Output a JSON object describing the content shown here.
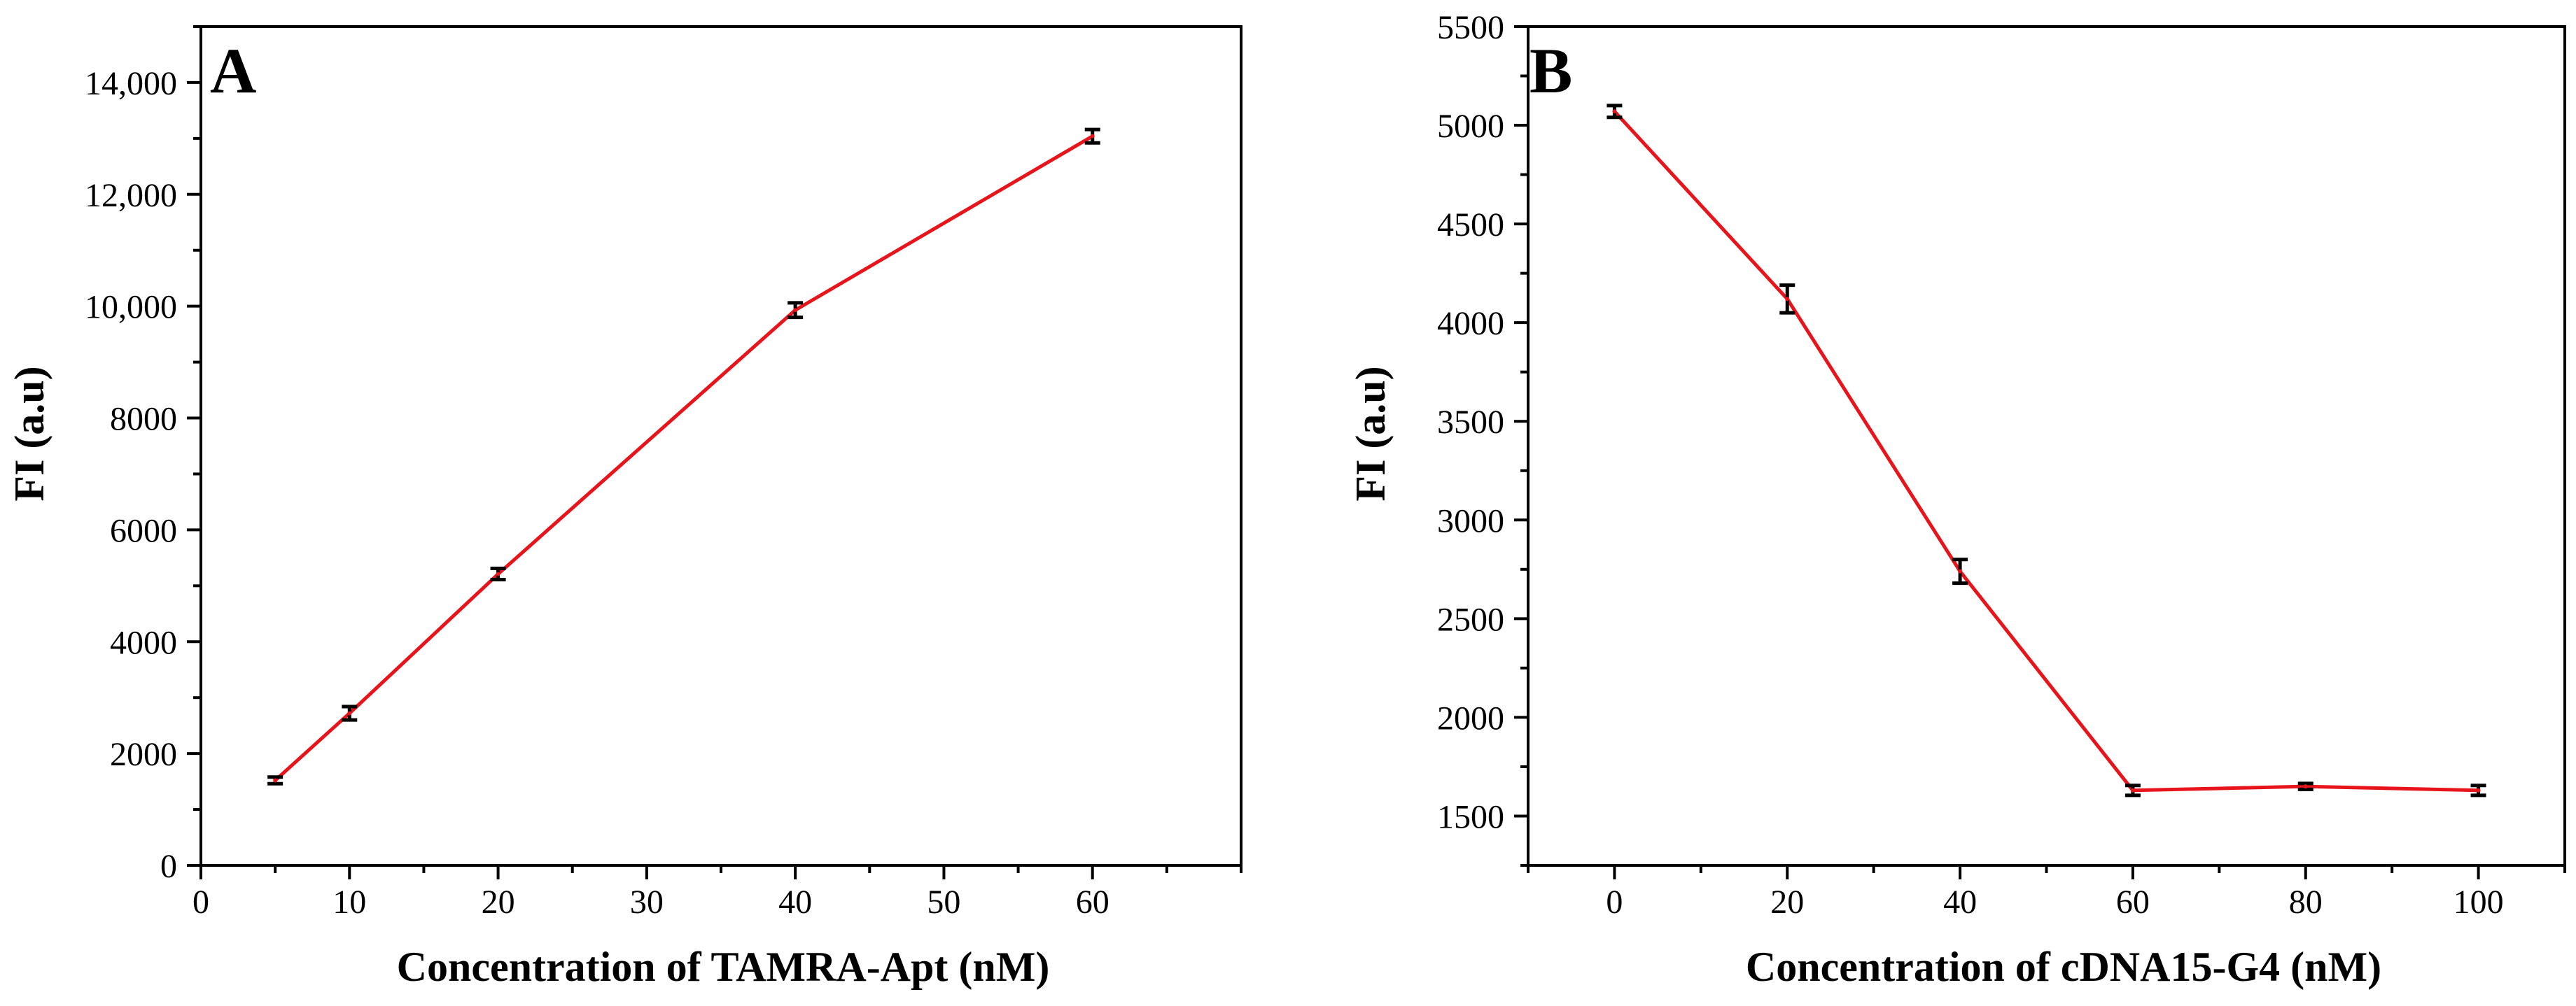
{
  "colors": {
    "line": "#e8141b",
    "axis": "#000000",
    "background": "#ffffff"
  },
  "chart_data": [
    {
      "type": "line",
      "panel_label": "A",
      "xlabel": "Concentration of TAMRA-Apt (nM)",
      "ylabel": "FI (a.u)",
      "xlim": [
        0,
        70
      ],
      "ylim": [
        0,
        15000
      ],
      "xticks": [
        0,
        10,
        20,
        30,
        40,
        50,
        60
      ],
      "xtick_labels": [
        "0",
        "10",
        "20",
        "30",
        "40",
        "50",
        "60"
      ],
      "yticks": [
        0,
        2000,
        4000,
        6000,
        8000,
        10000,
        12000,
        14000
      ],
      "ytick_labels": [
        "0",
        "2000",
        "4000",
        "6000",
        "8000",
        "10,000",
        "12,000",
        "14,000"
      ],
      "grid": false,
      "series": [
        {
          "name": "FI",
          "x": [
            5,
            10,
            20,
            40,
            60
          ],
          "y": [
            1520,
            2720,
            5210,
            9930,
            13040
          ],
          "err": [
            60,
            120,
            100,
            130,
            120
          ]
        }
      ]
    },
    {
      "type": "line",
      "panel_label": "B",
      "xlabel": "Concentration of cDNA15-G4 (nM)",
      "ylabel": "FI (a.u)",
      "xlim": [
        -10,
        110
      ],
      "ylim": [
        1250,
        5500
      ],
      "xticks": [
        0,
        20,
        40,
        60,
        80,
        100
      ],
      "xtick_labels": [
        "0",
        "20",
        "40",
        "60",
        "80",
        "100"
      ],
      "yticks": [
        1500,
        2000,
        2500,
        3000,
        3500,
        4000,
        4500,
        5000,
        5500
      ],
      "ytick_labels": [
        "1500",
        "2000",
        "2500",
        "3000",
        "3500",
        "4000",
        "4500",
        "5000",
        "5500"
      ],
      "grid": false,
      "series": [
        {
          "name": "FI",
          "x": [
            0,
            20,
            40,
            60,
            80,
            100
          ],
          "y": [
            5070,
            4120,
            2740,
            1630,
            1650,
            1630
          ],
          "err": [
            30,
            70,
            60,
            25,
            15,
            25
          ]
        }
      ]
    }
  ]
}
